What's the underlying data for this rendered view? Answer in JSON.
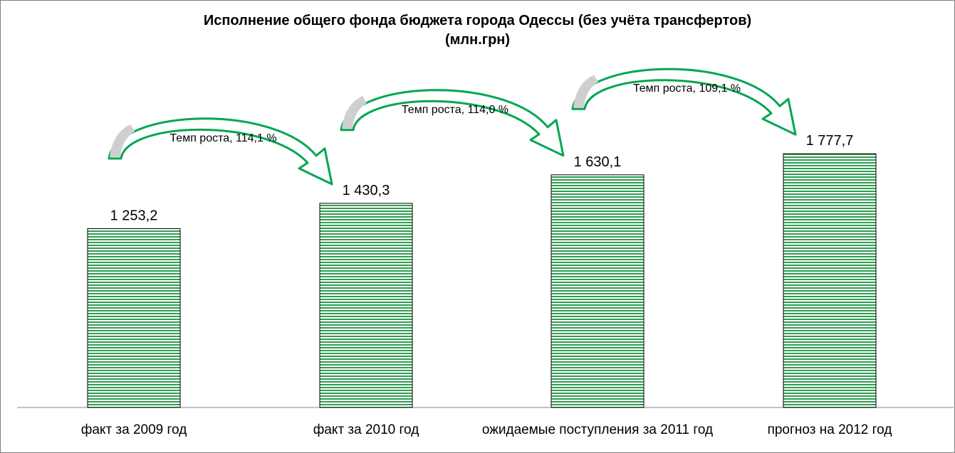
{
  "chart_data": {
    "type": "bar",
    "title_line1": "Исполнение общего фонда бюджета города Одессы (без учёта трансфертов)",
    "title_line2": "(млн.грн)",
    "categories": [
      "факт за 2009 год",
      "факт за 2010 год",
      "ожидаемые поступления за 2011 год",
      "прогноз на 2012 год"
    ],
    "values": [
      1253.2,
      1430.3,
      1630.1,
      1777.7
    ],
    "value_labels": [
      "1 253,2",
      "1 430,3",
      "1 630,1",
      "1 777,7"
    ],
    "growth_annotations": [
      {
        "from": 0,
        "to": 1,
        "label": "Темп роста, 114,1 %"
      },
      {
        "from": 1,
        "to": 2,
        "label": "Темп роста, 114,0 %"
      },
      {
        "from": 2,
        "to": 3,
        "label": "Темп роста, 109,1 %"
      }
    ],
    "ylim": [
      0,
      2232
    ],
    "grid": false,
    "legend": "none",
    "colors": {
      "bar_stripe": "#2e9e4f",
      "bar_bg": "#ffffff",
      "bar_border": "#000000",
      "arrow": "#00a651",
      "arrow_fill": "#cfcfcf"
    }
  }
}
